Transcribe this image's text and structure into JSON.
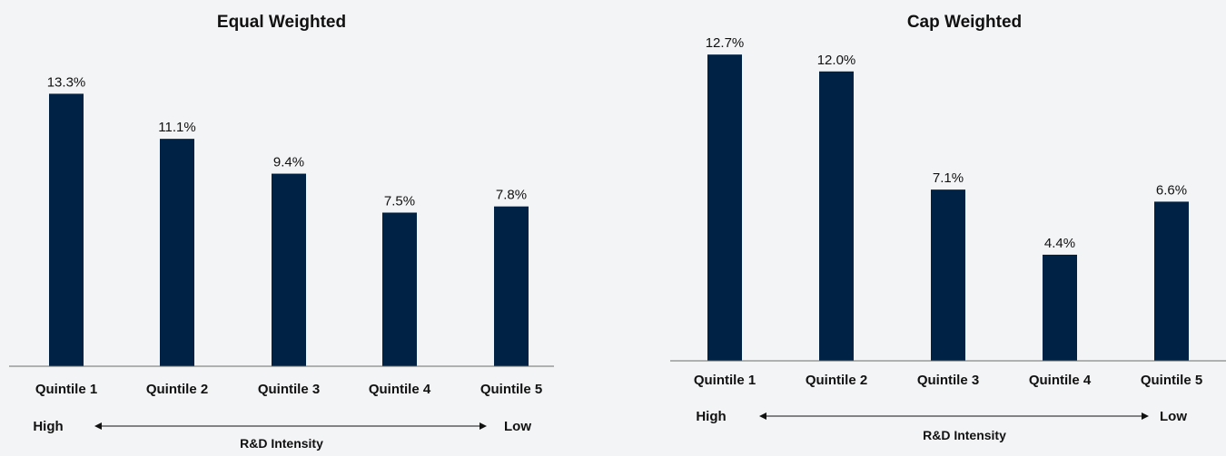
{
  "chart_data": [
    {
      "type": "bar",
      "title": "Equal Weighted",
      "categories": [
        "Quintile 1",
        "Quintile 2",
        "Quintile 3",
        "Quintile 4",
        "Quintile 5"
      ],
      "values": [
        13.3,
        11.1,
        9.4,
        7.5,
        7.8
      ],
      "data_labels": [
        "13.3%",
        "11.1%",
        "9.4%",
        "7.5%",
        "7.8%"
      ],
      "direction_labels": {
        "left": "High",
        "right": "Low"
      },
      "xlabel": "R&D Intensity",
      "ylabel": "",
      "ylim": [
        0,
        14
      ],
      "grid": false,
      "bar_color": "#002244"
    },
    {
      "type": "bar",
      "title": "Cap Weighted",
      "categories": [
        "Quintile 1",
        "Quintile 2",
        "Quintile 3",
        "Quintile 4",
        "Quintile 5"
      ],
      "values": [
        12.7,
        12.0,
        7.1,
        4.4,
        6.6
      ],
      "data_labels": [
        "12.7%",
        "12.0%",
        "7.1%",
        "4.4%",
        "6.6%"
      ],
      "direction_labels": {
        "left": "High",
        "right": "Low"
      },
      "xlabel": "R&D Intensity",
      "ylabel": "",
      "ylim": [
        0,
        13
      ],
      "grid": false,
      "bar_color": "#002244"
    }
  ]
}
